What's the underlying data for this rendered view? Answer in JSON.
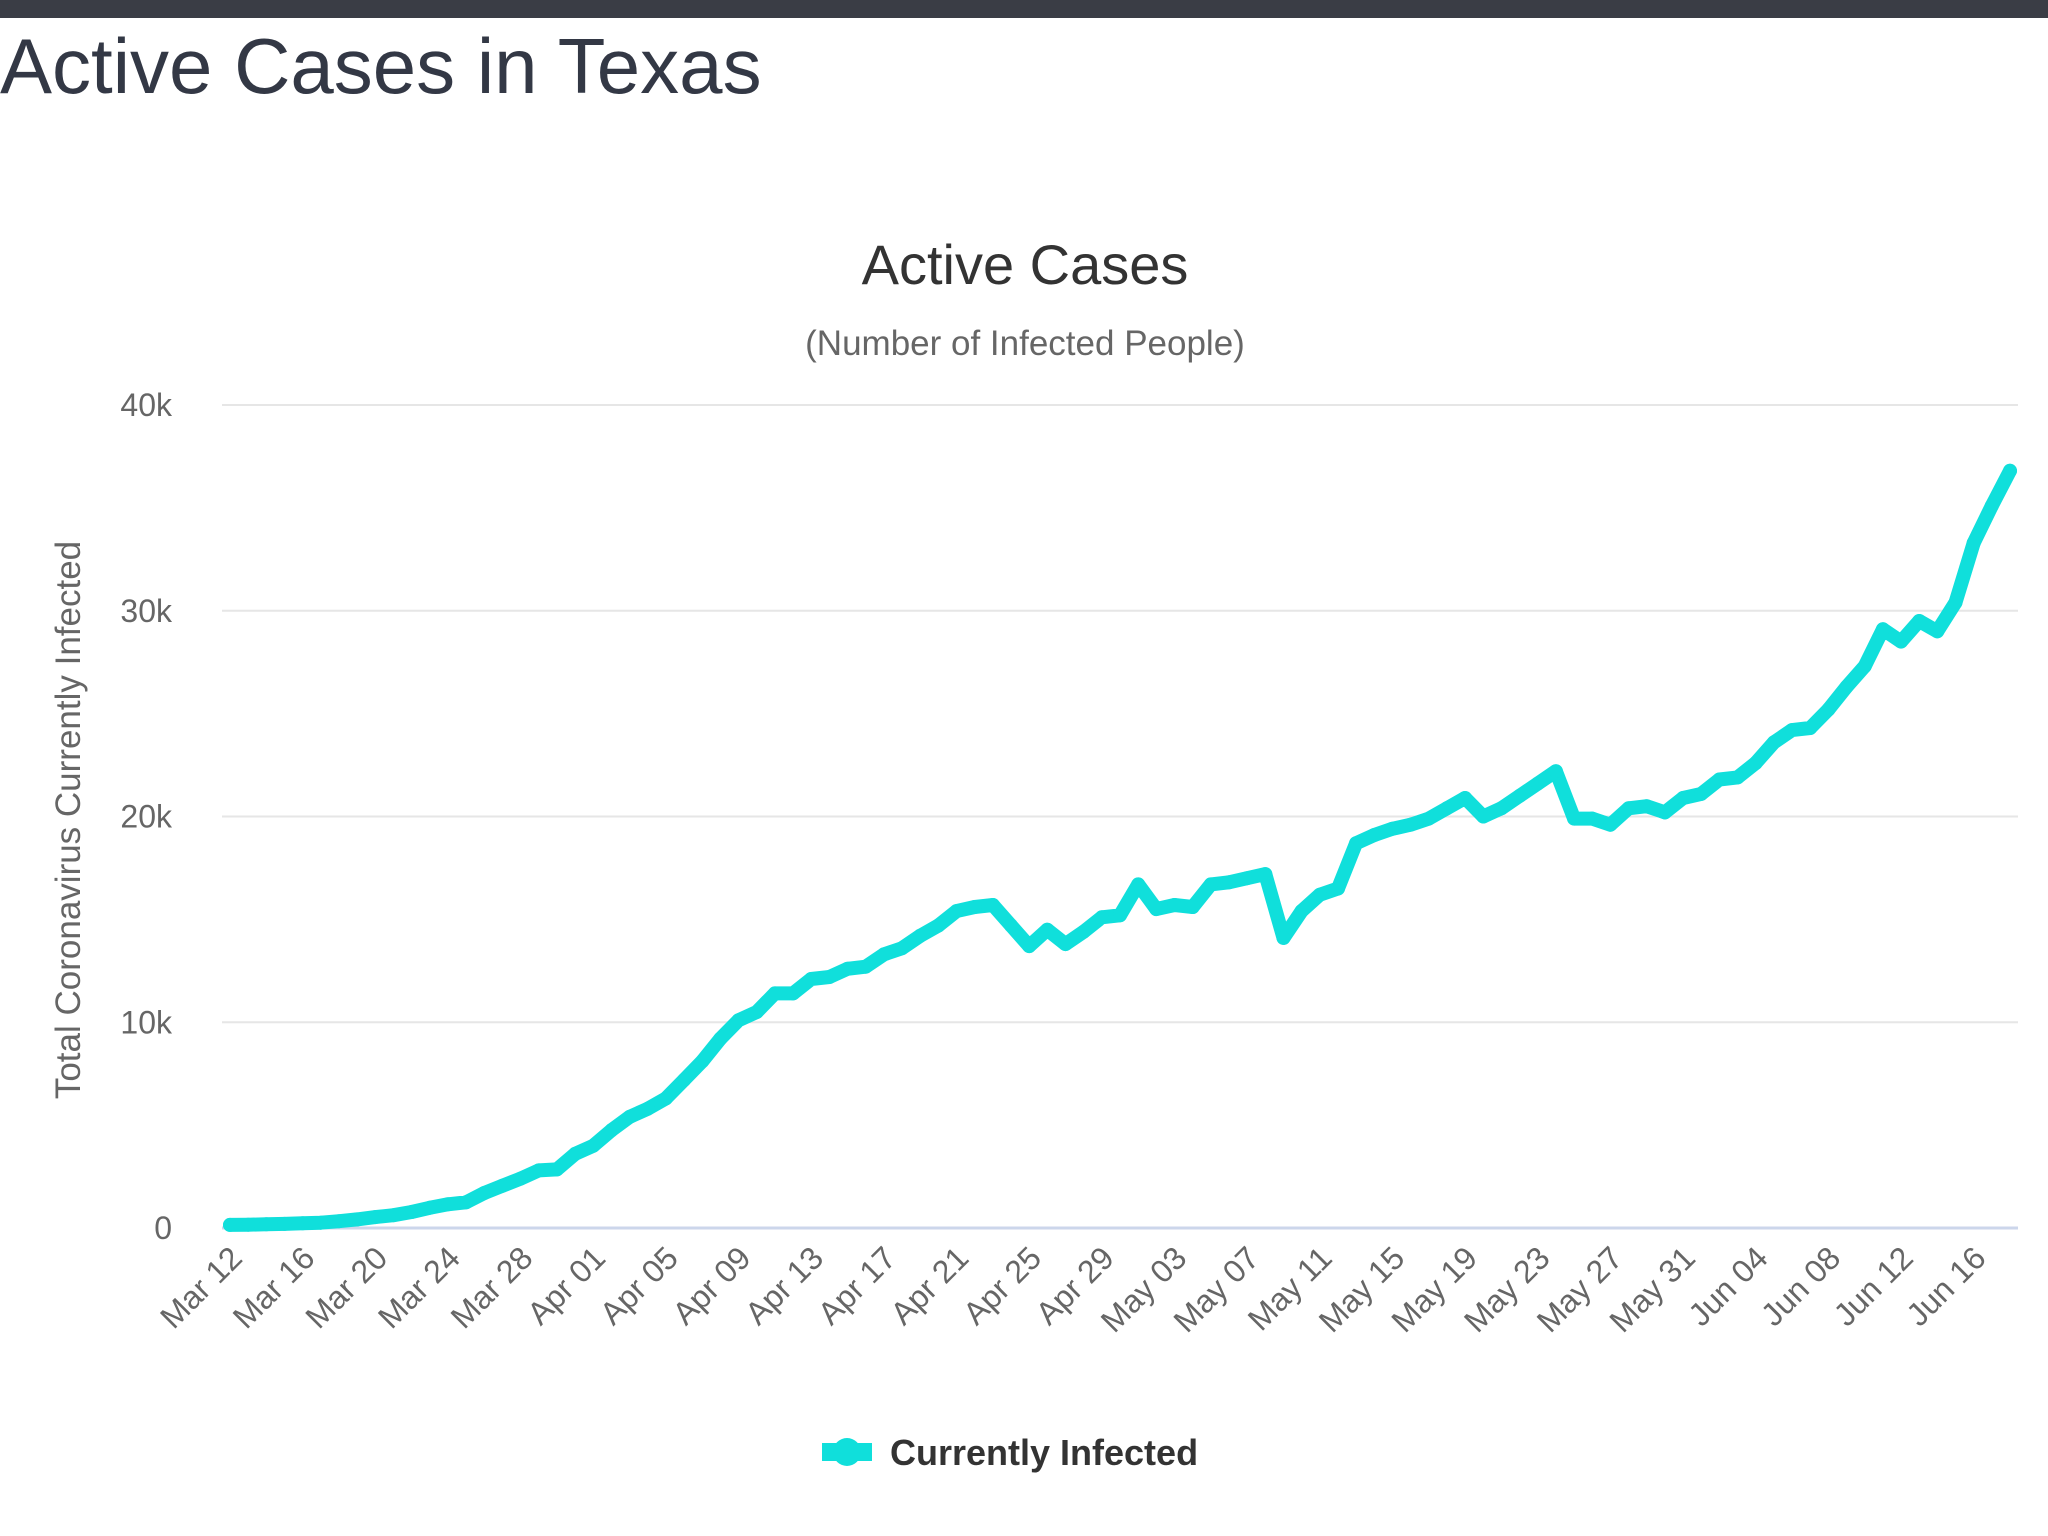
{
  "page": {
    "title": "Active Cases in Texas"
  },
  "colors": {
    "series": "#10dfdb",
    "grid": "#e6e6e6",
    "baseline": "#ccd6eb",
    "text": "#333333",
    "muted": "#666666"
  },
  "chart_data": {
    "type": "line",
    "title": "Active Cases",
    "subtitle": "(Number of Infected People)",
    "xlabel": "",
    "ylabel": "Total Coronavirus Currently Infected",
    "ylim": [
      0,
      40000
    ],
    "y_ticks": [
      0,
      10000,
      20000,
      30000,
      40000
    ],
    "y_tick_labels": [
      "0",
      "10k",
      "20k",
      "30k",
      "40k"
    ],
    "x_tick_labels": [
      "Mar 12",
      "Mar 16",
      "Mar 20",
      "Mar 24",
      "Mar 28",
      "Apr 01",
      "Apr 05",
      "Apr 09",
      "Apr 13",
      "Apr 17",
      "Apr 21",
      "Apr 25",
      "Apr 29",
      "May 03",
      "May 07",
      "May 11",
      "May 15",
      "May 19",
      "May 23",
      "May 27",
      "May 31",
      "Jun 04",
      "Jun 08",
      "Jun 12",
      "Jun 16"
    ],
    "grid": true,
    "legend_position": "bottom-center",
    "categories": [
      "Mar 12",
      "Mar 13",
      "Mar 14",
      "Mar 15",
      "Mar 16",
      "Mar 17",
      "Mar 18",
      "Mar 19",
      "Mar 20",
      "Mar 21",
      "Mar 22",
      "Mar 23",
      "Mar 24",
      "Mar 25",
      "Mar 26",
      "Mar 27",
      "Mar 28",
      "Mar 29",
      "Mar 30",
      "Mar 31",
      "Apr 01",
      "Apr 02",
      "Apr 03",
      "Apr 04",
      "Apr 05",
      "Apr 06",
      "Apr 07",
      "Apr 08",
      "Apr 09",
      "Apr 10",
      "Apr 11",
      "Apr 12",
      "Apr 13",
      "Apr 14",
      "Apr 15",
      "Apr 16",
      "Apr 17",
      "Apr 18",
      "Apr 19",
      "Apr 20",
      "Apr 21",
      "Apr 22",
      "Apr 23",
      "Apr 24",
      "Apr 25",
      "Apr 26",
      "Apr 27",
      "Apr 28",
      "Apr 29",
      "Apr 30",
      "May 01",
      "May 02",
      "May 03",
      "May 04",
      "May 05",
      "May 06",
      "May 07",
      "May 08",
      "May 09",
      "May 10",
      "May 11",
      "May 12",
      "May 13",
      "May 14",
      "May 15",
      "May 16",
      "May 17",
      "May 18",
      "May 19",
      "May 20",
      "May 21",
      "May 22",
      "May 23",
      "May 24",
      "May 25",
      "May 26",
      "May 27",
      "May 28",
      "May 29",
      "May 30",
      "May 31",
      "Jun 01",
      "Jun 02",
      "Jun 03",
      "Jun 04",
      "Jun 05",
      "Jun 06",
      "Jun 07",
      "Jun 08",
      "Jun 09",
      "Jun 10",
      "Jun 11",
      "Jun 12",
      "Jun 13",
      "Jun 14",
      "Jun 15",
      "Jun 16",
      "Jun 17",
      "Jun 18"
    ],
    "series": [
      {
        "name": "Currently Infected",
        "values": [
          150,
          160,
          180,
          200,
          230,
          260,
          330,
          420,
          530,
          620,
          780,
          980,
          1150,
          1250,
          1700,
          2050,
          2400,
          2800,
          2850,
          3600,
          4000,
          4750,
          5400,
          5800,
          6300,
          7200,
          8100,
          9200,
          10100,
          10500,
          11400,
          11400,
          12100,
          12200,
          12600,
          12700,
          13300,
          13600,
          14200,
          14700,
          15400,
          15600,
          15700,
          14700,
          13700,
          14500,
          13800,
          14400,
          15100,
          15200,
          16700,
          15500,
          15700,
          15600,
          16700,
          16800,
          17000,
          17200,
          14100,
          15400,
          16200,
          16500,
          18700,
          19100,
          19400,
          19600,
          19900,
          20400,
          20900,
          20000,
          20400,
          21000,
          21600,
          22200,
          19900,
          19900,
          19600,
          20400,
          20500,
          20200,
          20900,
          21100,
          21800,
          21900,
          22600,
          23600,
          24200,
          24300,
          25200,
          26300,
          27300,
          29100,
          28500,
          29500,
          29000,
          30400,
          33300,
          35100,
          36800
        ]
      }
    ]
  }
}
